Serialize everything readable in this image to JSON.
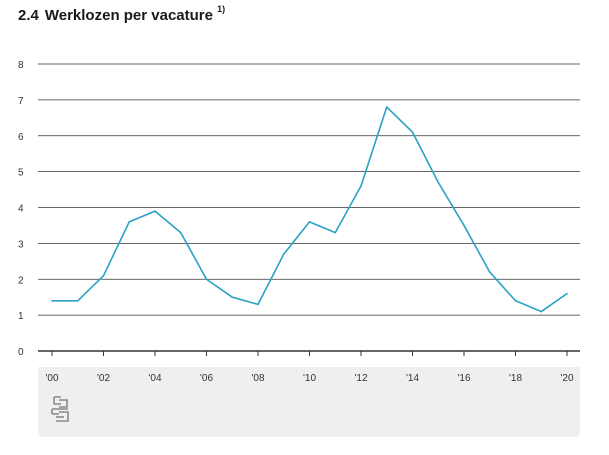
{
  "header": {
    "number": "2.4",
    "title": "Werklozen per vacature",
    "footnote": "1)"
  },
  "colors": {
    "line": "#2aa2c4",
    "grid": "#333333",
    "footer_bg": "#efefef"
  },
  "logo": {
    "icon": "cbs-logo-icon"
  },
  "chart_data": {
    "type": "line",
    "title": "Werklozen per vacature",
    "xlabel": "",
    "ylabel": "",
    "x": [
      2000,
      2001,
      2002,
      2003,
      2004,
      2005,
      2006,
      2007,
      2008,
      2009,
      2010,
      2011,
      2012,
      2013,
      2014,
      2015,
      2016,
      2017,
      2018,
      2019,
      2020
    ],
    "series": [
      {
        "values": [
          1.4,
          1.4,
          2.1,
          3.6,
          3.9,
          3.3,
          2.0,
          1.5,
          1.3,
          2.7,
          3.6,
          3.3,
          4.6,
          6.8,
          6.1,
          4.7,
          3.5,
          2.2,
          1.4,
          1.1,
          1.6
        ]
      }
    ],
    "xlim": [
      2000,
      2020
    ],
    "ylim": [
      0,
      8
    ],
    "yticks": [
      "0",
      "1",
      "2",
      "3",
      "4",
      "5",
      "6",
      "7",
      "8"
    ],
    "xtick_labels": [
      "'00",
      "'02",
      "'04",
      "'06",
      "'08",
      "'10",
      "'12",
      "'14",
      "'16",
      "'18",
      "'20"
    ],
    "grid": true,
    "legend": "none"
  }
}
